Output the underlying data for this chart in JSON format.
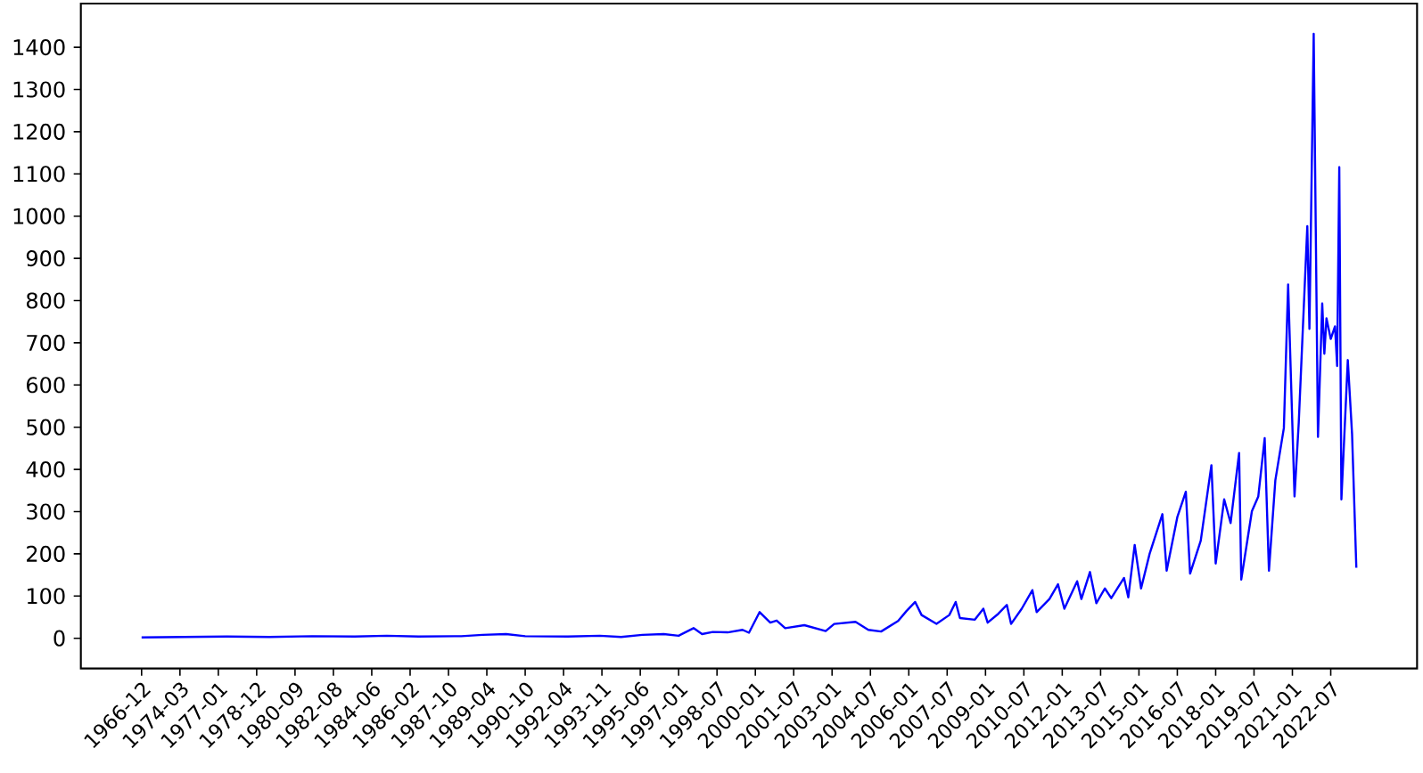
{
  "chart_data": {
    "type": "line",
    "color": "#0000ff",
    "categories": [
      "1966-12",
      null,
      null,
      null,
      null,
      null,
      null,
      null,
      null,
      null,
      null,
      null,
      null,
      null,
      null,
      null,
      null,
      null,
      "1974-03",
      null,
      null,
      null,
      null,
      null,
      null,
      null,
      null,
      null,
      null,
      null,
      null,
      null,
      null,
      null,
      null,
      null,
      "1977-01",
      null,
      null,
      null,
      null,
      null,
      null,
      null,
      null,
      null,
      null,
      null,
      null,
      null,
      null,
      null,
      null,
      null,
      "1978-12",
      null,
      null,
      null,
      null,
      null,
      null,
      null,
      null,
      null,
      null,
      null,
      null,
      null,
      null,
      null,
      null,
      null,
      "1980-09",
      null,
      null,
      null,
      null,
      null,
      null,
      null,
      null,
      null,
      null,
      null,
      null,
      null,
      null,
      null,
      null,
      null,
      "1982-08",
      null,
      null,
      null,
      null,
      null,
      null,
      null,
      null,
      null,
      null,
      null,
      null,
      null,
      null,
      null,
      null,
      null,
      "1984-06",
      null,
      null,
      null,
      null,
      null,
      null,
      null,
      null,
      null,
      null,
      null,
      null,
      null,
      null,
      null,
      null,
      null,
      "1986-02",
      null,
      null,
      null,
      null,
      null,
      null,
      null,
      null,
      null,
      null,
      null,
      null,
      null,
      null,
      null,
      null,
      null,
      "1987-10",
      null,
      null,
      null,
      null,
      null,
      null,
      null,
      null,
      null,
      null,
      null,
      null,
      null,
      null,
      null,
      null,
      null,
      "1989-04",
      null,
      null,
      null,
      null,
      null,
      null,
      null,
      null,
      null,
      null,
      null,
      null,
      null,
      null,
      null,
      null,
      null,
      "1990-10",
      null,
      null,
      null,
      null,
      null,
      null,
      null,
      null,
      null,
      null,
      null,
      null,
      null,
      null,
      null,
      null,
      null,
      "1992-04",
      null,
      null,
      null,
      null,
      null,
      null,
      null,
      null,
      null,
      null,
      null,
      null,
      null,
      null,
      null,
      null,
      null,
      "1993-11",
      null,
      null,
      null,
      null,
      null,
      null,
      null,
      null,
      null,
      null,
      null,
      null,
      null,
      null,
      null,
      null,
      null,
      "1995-06",
      null,
      null,
      null,
      null,
      null,
      null,
      null,
      null,
      null,
      null,
      null,
      null,
      null,
      null,
      null,
      null,
      null,
      "1997-01",
      null,
      null,
      null,
      null,
      null,
      null,
      null,
      null,
      null,
      null,
      null,
      null,
      null,
      null,
      null,
      null,
      null,
      "1998-07",
      null,
      null,
      null,
      null,
      null,
      null,
      null,
      null,
      null,
      null,
      null,
      null,
      null,
      null,
      null,
      null,
      null,
      "2000-01",
      null,
      null,
      null,
      null,
      null,
      null,
      null,
      null,
      null,
      null,
      null,
      null,
      null,
      null,
      null,
      null,
      null,
      "2001-07",
      null,
      null,
      null,
      null,
      null,
      null,
      null,
      null,
      null,
      null,
      null,
      null,
      null,
      null,
      null,
      null,
      null,
      "2003-01",
      null,
      null,
      null,
      null,
      null,
      null,
      null,
      null,
      null,
      null,
      null,
      null,
      null,
      null,
      null,
      null,
      null,
      "2004-07",
      null,
      null,
      null,
      null,
      null,
      null,
      null,
      null,
      null,
      null,
      null,
      null,
      null,
      null,
      null,
      null,
      null,
      "2006-01",
      null,
      null,
      null,
      null,
      null,
      null,
      null,
      null,
      null,
      null,
      null,
      null,
      null,
      null,
      null,
      null,
      null,
      "2007-07",
      null,
      null,
      null,
      null,
      null,
      null,
      null,
      null,
      null,
      null,
      null,
      null,
      null,
      null,
      null,
      null,
      null,
      "2009-01",
      null,
      null,
      null,
      null,
      null,
      null,
      null,
      null,
      null,
      null,
      null,
      null,
      null,
      null,
      null,
      null,
      null,
      "2010-07",
      null,
      null,
      null,
      null,
      null,
      null,
      null,
      null,
      null,
      null,
      null,
      null,
      null,
      null,
      null,
      null,
      null,
      "2012-01",
      null,
      null,
      null,
      null,
      null,
      null,
      null,
      null,
      null,
      null,
      null,
      null,
      null,
      null,
      null,
      null,
      null,
      "2013-07",
      null,
      null,
      null,
      null,
      null,
      null,
      null,
      null,
      null,
      null,
      null,
      null,
      null,
      null,
      null,
      null,
      null,
      "2015-01",
      null,
      null,
      null,
      null,
      null,
      null,
      null,
      null,
      null,
      null,
      null,
      null,
      null,
      null,
      null,
      null,
      null,
      "2016-07",
      null,
      null,
      null,
      null,
      null,
      null,
      null,
      null,
      null,
      null,
      null,
      null,
      null,
      null,
      null,
      null,
      null,
      "2018-01",
      null,
      null,
      null,
      null,
      null,
      null,
      null,
      null,
      null,
      null,
      null,
      null,
      null,
      null,
      null,
      null,
      null,
      "2019-07",
      null,
      null,
      null,
      null,
      null,
      null,
      null,
      null,
      null,
      null,
      null,
      null,
      null,
      null,
      null,
      null,
      null,
      "2021-01",
      null,
      null,
      null,
      null,
      null,
      null,
      null,
      null,
      null,
      null,
      null,
      null,
      null,
      null,
      null,
      null,
      null,
      "2022-07",
      null,
      null,
      null,
      null,
      null,
      null,
      null,
      null,
      null,
      null,
      null,
      null
    ],
    "values": [
      2,
      null,
      null,
      null,
      null,
      null,
      null,
      null,
      null,
      null,
      null,
      null,
      null,
      null,
      null,
      null,
      null,
      null,
      null,
      null,
      3,
      null,
      null,
      null,
      null,
      null,
      null,
      null,
      null,
      null,
      null,
      null,
      null,
      null,
      null,
      null,
      null,
      null,
      null,
      null,
      4,
      null,
      null,
      null,
      null,
      null,
      null,
      null,
      null,
      null,
      null,
      null,
      null,
      null,
      null,
      null,
      null,
      null,
      null,
      null,
      3,
      null,
      null,
      null,
      null,
      null,
      null,
      null,
      null,
      null,
      null,
      null,
      null,
      null,
      null,
      null,
      null,
      null,
      null,
      null,
      5,
      null,
      null,
      null,
      null,
      null,
      null,
      null,
      null,
      null,
      null,
      null,
      null,
      null,
      null,
      null,
      null,
      null,
      null,
      null,
      4,
      null,
      null,
      null,
      null,
      null,
      null,
      null,
      null,
      null,
      null,
      null,
      null,
      null,
      null,
      6,
      null,
      null,
      null,
      null,
      null,
      null,
      null,
      null,
      null,
      null,
      null,
      null,
      null,
      null,
      4,
      null,
      null,
      null,
      null,
      null,
      null,
      null,
      null,
      null,
      null,
      null,
      null,
      null,
      null,
      null,
      null,
      null,
      null,
      null,
      5,
      null,
      null,
      null,
      null,
      null,
      null,
      null,
      null,
      null,
      8,
      null,
      null,
      null,
      null,
      null,
      null,
      null,
      null,
      null,
      null,
      10,
      null,
      null,
      null,
      null,
      null,
      null,
      null,
      null,
      5,
      null,
      null,
      null,
      null,
      null,
      null,
      null,
      null,
      null,
      null,
      null,
      null,
      null,
      null,
      null,
      null,
      null,
      null,
      null,
      4,
      null,
      null,
      null,
      null,
      null,
      null,
      null,
      null,
      null,
      null,
      null,
      null,
      null,
      null,
      6,
      null,
      null,
      null,
      null,
      null,
      null,
      null,
      null,
      null,
      3,
      null,
      null,
      null,
      null,
      null,
      null,
      null,
      null,
      null,
      8,
      null,
      null,
      null,
      null,
      null,
      null,
      null,
      null,
      null,
      10,
      null,
      null,
      null,
      null,
      null,
      null,
      6,
      null,
      null,
      null,
      null,
      null,
      null,
      24,
      null,
      null,
      null,
      10,
      null,
      null,
      null,
      null,
      15,
      null,
      null,
      null,
      null,
      null,
      null,
      14,
      null,
      null,
      null,
      null,
      null,
      null,
      20,
      null,
      null,
      13,
      null,
      null,
      null,
      null,
      62,
      null,
      null,
      null,
      null,
      37,
      null,
      null,
      42,
      null,
      null,
      null,
      24,
      null,
      null,
      null,
      null,
      null,
      null,
      null,
      null,
      31,
      null,
      null,
      null,
      null,
      null,
      null,
      null,
      null,
      null,
      17,
      null,
      null,
      null,
      34,
      null,
      null,
      null,
      null,
      null,
      null,
      null,
      null,
      null,
      39,
      null,
      null,
      null,
      null,
      null,
      20,
      null,
      null,
      null,
      null,
      null,
      16,
      null,
      null,
      null,
      null,
      null,
      null,
      null,
      41,
      null,
      null,
      null,
      65,
      null,
      null,
      null,
      86,
      null,
      null,
      55,
      null,
      null,
      null,
      null,
      null,
      null,
      34,
      null,
      null,
      null,
      null,
      null,
      55,
      null,
      null,
      86,
      null,
      48,
      null,
      null,
      null,
      null,
      null,
      null,
      44,
      null,
      null,
      null,
      70,
      null,
      37,
      null,
      null,
      null,
      null,
      58,
      null,
      null,
      null,
      79,
      null,
      34,
      null,
      null,
      null,
      null,
      70,
      null,
      null,
      null,
      null,
      114,
      null,
      62,
      null,
      null,
      null,
      null,
      null,
      93,
      null,
      null,
      null,
      128,
      null,
      null,
      70,
      null,
      null,
      null,
      null,
      null,
      135,
      null,
      93,
      null,
      null,
      null,
      157,
      null,
      null,
      83,
      null,
      null,
      null,
      118,
      null,
      null,
      95,
      null,
      null,
      null,
      null,
      null,
      143,
      null,
      97,
      null,
      null,
      221,
      null,
      null,
      118,
      null,
      null,
      null,
      200,
      null,
      null,
      null,
      null,
      null,
      294,
      null,
      160,
      null,
      null,
      null,
      null,
      287,
      null,
      null,
      null,
      347,
      null,
      153,
      null,
      null,
      null,
      null,
      231,
      null,
      null,
      null,
      null,
      410,
      null,
      177,
      null,
      null,
      null,
      329,
      null,
      null,
      273,
      null,
      null,
      null,
      439,
      139,
      null,
      null,
      null,
      null,
      301,
      null,
      null,
      336,
      null,
      null,
      474,
      null,
      160,
      null,
      null,
      374,
      null,
      null,
      null,
      498,
      null,
      838,
      null,
      null,
      336,
      null,
      512,
      null,
      null,
      null,
      976,
      733,
      null,
      1432,
      null,
      477,
      null,
      793,
      674,
      758,
      null,
      709,
      null,
      739,
      645,
      1116,
      329,
      null,
      null,
      659,
      null,
      484,
      null,
      167
    ],
    "ylim": [
      -71.6,
      1503.6
    ],
    "yticks": [
      0,
      100,
      200,
      300,
      400,
      500,
      600,
      700,
      800,
      900,
      1000,
      1100,
      1200,
      1300,
      1400
    ]
  }
}
